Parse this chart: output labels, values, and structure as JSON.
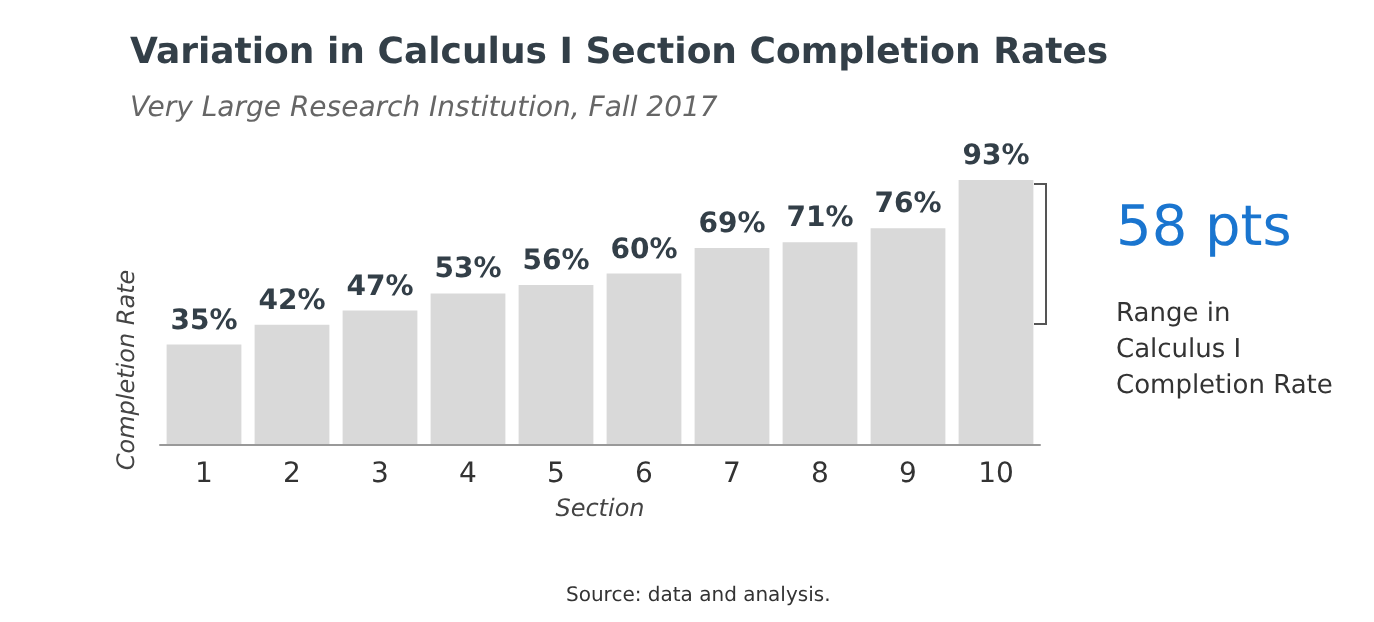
{
  "chart_data": {
    "type": "bar",
    "title": "Variation in Calculus I Section Completion Rates",
    "subtitle": "Very Large Research Institution, Fall 2017",
    "xlabel": "Section",
    "ylabel": "Completion Rate",
    "categories": [
      "1",
      "2",
      "3",
      "4",
      "5",
      "6",
      "7",
      "8",
      "9",
      "10"
    ],
    "values": [
      35,
      42,
      47,
      53,
      56,
      60,
      69,
      71,
      76,
      93
    ],
    "value_labels": [
      "35%",
      "42%",
      "47%",
      "53%",
      "56%",
      "60%",
      "69%",
      "71%",
      "76%",
      "93%"
    ],
    "color": "#d9d9d9",
    "annotations": [
      "58 pts",
      "Range in Calculus I Completion Rate",
      "Source: data and analysis."
    ]
  }
}
